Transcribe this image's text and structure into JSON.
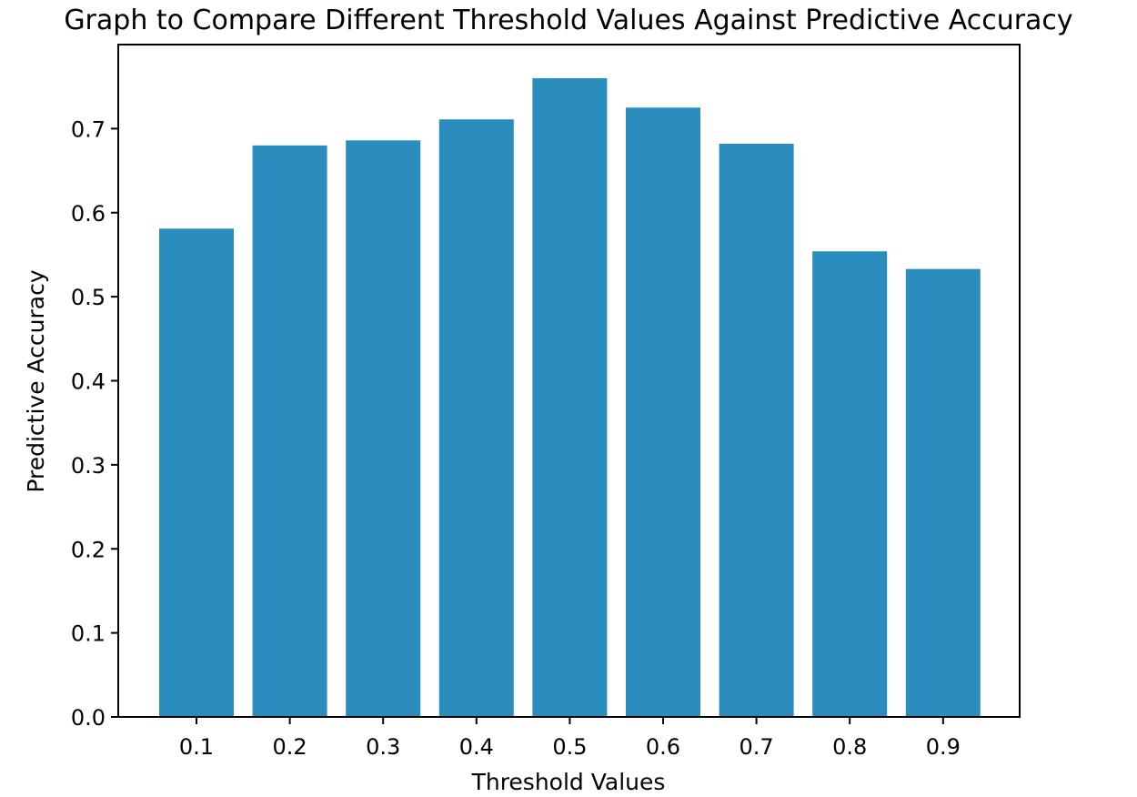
{
  "chart_data": {
    "type": "bar",
    "title": "Graph to Compare Different Threshold Values Against Predictive Accuracy",
    "xlabel": "Threshold Values",
    "ylabel": "Predictive Accuracy",
    "categories": [
      "0.1",
      "0.2",
      "0.3",
      "0.4",
      "0.5",
      "0.6",
      "0.7",
      "0.8",
      "0.9"
    ],
    "values": [
      0.581,
      0.68,
      0.686,
      0.711,
      0.76,
      0.725,
      0.682,
      0.554,
      0.533
    ],
    "ylim": [
      0,
      0.8
    ],
    "yticks": [
      "0.0",
      "0.1",
      "0.2",
      "0.3",
      "0.4",
      "0.5",
      "0.6",
      "0.7"
    ],
    "bar_color": "#2b8cbe",
    "grid": false,
    "legend": "none"
  }
}
